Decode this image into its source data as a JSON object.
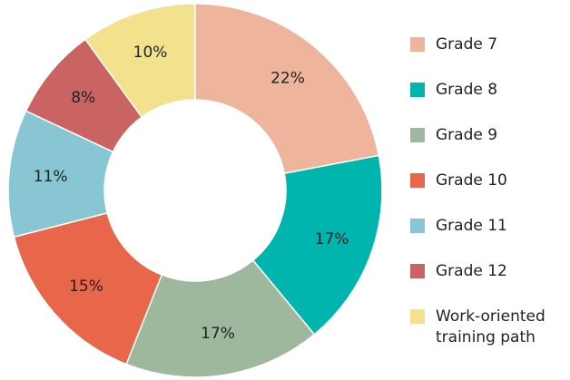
{
  "chart_data": {
    "type": "donut",
    "categories": [
      "Grade 7",
      "Grade 8",
      "Grade 9",
      "Grade 10",
      "Grade 11",
      "Grade 12",
      "Work-oriented training path"
    ],
    "values": [
      22,
      17,
      17,
      15,
      11,
      8,
      10
    ],
    "value_labels": [
      "22%",
      "17%",
      "17%",
      "15%",
      "11%",
      "8%",
      "10%"
    ],
    "colors": [
      "#eeb49c",
      "#00b5ad",
      "#9db89c",
      "#e8664a",
      "#88c6d4",
      "#c96462",
      "#f2e28e"
    ],
    "legend": "right"
  }
}
